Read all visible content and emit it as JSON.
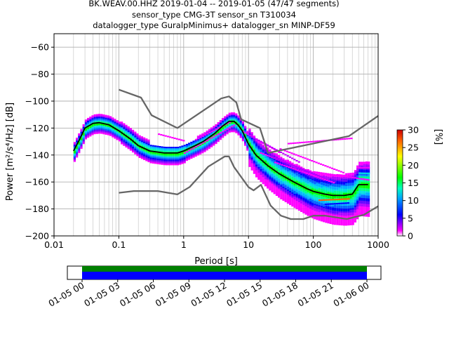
{
  "header": {
    "line1": "BK.WEAV.00.HHZ   2019-01-04 -- 2019-01-05  (47/47 segments)",
    "line2": "sensor_type CMG-3T sensor_sn T310034",
    "line3": "datalogger_type GuralpMinimus+ datalogger_sn MINP-DF59"
  },
  "chart_data": {
    "type": "heatmap",
    "title": "BK.WEAV.00.HHZ   2019-01-04 -- 2019-01-05  (47/47 segments)",
    "xlabel": "Period [s]",
    "ylabel": "Power [m²/s⁴/Hz] [dB]",
    "x_scale": "log",
    "xlim": [
      0.01,
      1000
    ],
    "ylim": [
      -200,
      -50
    ],
    "x_ticks": [
      "0.01",
      "0.1",
      "1",
      "10",
      "100",
      "1000"
    ],
    "y_ticks": [
      "−60",
      "−80",
      "−100",
      "−120",
      "−140",
      "−160",
      "−180",
      "−200"
    ],
    "grid": true,
    "colorbar": {
      "label": "[%]",
      "range": [
        0,
        30
      ],
      "ticks": [
        "0",
        "5",
        "10",
        "15",
        "20",
        "25",
        "30"
      ]
    },
    "series": [
      {
        "name": "NHNM",
        "color": "#666666",
        "points": [
          [
            0.1,
            -91.5
          ],
          [
            0.22,
            -97.4
          ],
          [
            0.32,
            -110.5
          ],
          [
            0.8,
            -120
          ],
          [
            3.8,
            -98
          ],
          [
            5,
            -96.5
          ],
          [
            6.5,
            -101
          ],
          [
            7.7,
            -113.5
          ],
          [
            15,
            -120
          ],
          [
            20,
            -138.5
          ],
          [
            354,
            -126
          ],
          [
            1000,
            -111
          ]
        ]
      },
      {
        "name": "NLNM",
        "color": "#666666",
        "points": [
          [
            0.1,
            -168
          ],
          [
            0.17,
            -166.7
          ],
          [
            0.4,
            -166.7
          ],
          [
            0.8,
            -169.2
          ],
          [
            1.24,
            -163.7
          ],
          [
            2.4,
            -148.6
          ],
          [
            4.3,
            -141.1
          ],
          [
            5,
            -141.1
          ],
          [
            6,
            -149
          ],
          [
            10,
            -163.8
          ],
          [
            12,
            -166.2
          ],
          [
            15.6,
            -162.1
          ],
          [
            21.9,
            -177.5
          ],
          [
            31.6,
            -185
          ],
          [
            45,
            -187.5
          ],
          [
            70,
            -187.5
          ],
          [
            101,
            -185
          ],
          [
            154,
            -185
          ],
          [
            328,
            -187.5
          ],
          [
            600,
            -184.4
          ],
          [
            1000,
            -178
          ]
        ]
      },
      {
        "name": "mode",
        "color": "#000000",
        "points": [
          [
            0.02,
            -137
          ],
          [
            0.025,
            -128
          ],
          [
            0.03,
            -120
          ],
          [
            0.04,
            -116.5
          ],
          [
            0.05,
            -116
          ],
          [
            0.07,
            -117.5
          ],
          [
            0.1,
            -122
          ],
          [
            0.15,
            -128
          ],
          [
            0.2,
            -133
          ],
          [
            0.3,
            -137
          ],
          [
            0.5,
            -138.5
          ],
          [
            0.8,
            -138.5
          ],
          [
            1,
            -137
          ],
          [
            1.5,
            -133
          ],
          [
            2,
            -130
          ],
          [
            3,
            -124
          ],
          [
            4,
            -118.5
          ],
          [
            5,
            -115
          ],
          [
            6,
            -115
          ],
          [
            7,
            -118
          ],
          [
            8,
            -122
          ],
          [
            10,
            -132
          ],
          [
            13,
            -140
          ],
          [
            20,
            -148
          ],
          [
            30,
            -154
          ],
          [
            50,
            -160
          ],
          [
            80,
            -165
          ],
          [
            100,
            -167
          ],
          [
            150,
            -169
          ],
          [
            200,
            -170
          ],
          [
            300,
            -170
          ],
          [
            400,
            -169
          ],
          [
            500,
            -162
          ],
          [
            700,
            -162
          ]
        ]
      }
    ],
    "coverage": {
      "start": "2019-01-05 00",
      "end": "2019-01-06 00",
      "x_ticks": [
        "01-05 00",
        "01-05 03",
        "01-05 06",
        "01-05 09",
        "01-05 12",
        "01-05 15",
        "01-05 18",
        "01-05 21",
        "01-06 00"
      ],
      "colors": {
        "top": "#008000",
        "bottom": "#0000ff"
      }
    }
  }
}
